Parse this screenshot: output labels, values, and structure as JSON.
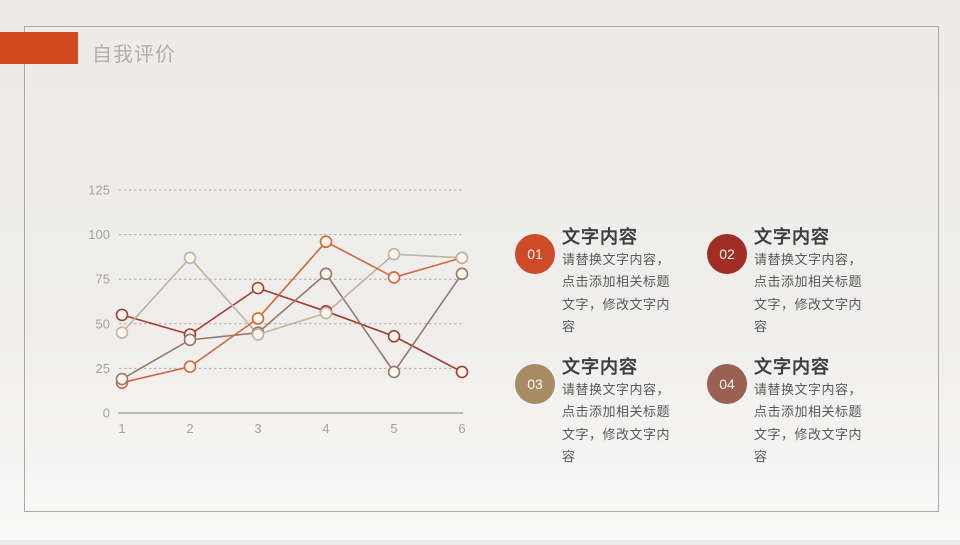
{
  "slide": {
    "title": "自我评价",
    "accent_color": "#D14A1F",
    "border_color": "#ABA9A6"
  },
  "chart_data": {
    "type": "line",
    "x": [
      "1",
      "2",
      "3",
      "4",
      "5",
      "6"
    ],
    "series": [
      {
        "name": "series-01-orange",
        "color": "#D4663A",
        "values": [
          17,
          26,
          53,
          96,
          76,
          87
        ]
      },
      {
        "name": "series-02-darkred",
        "color": "#A63B30",
        "values": [
          55,
          44,
          70,
          57,
          43,
          23
        ]
      },
      {
        "name": "series-03-tan",
        "color": "#BFB3A1",
        "values": [
          45,
          87,
          44,
          56,
          89,
          87
        ]
      },
      {
        "name": "series-04-brown",
        "color": "#97786B",
        "values": [
          19,
          41,
          45,
          78,
          23,
          78
        ]
      }
    ],
    "ylim": [
      0,
      125
    ],
    "yticks": [
      0,
      25,
      50,
      75,
      100,
      125
    ],
    "grid": "dashed-horizontal",
    "legend": "none",
    "marker_fill": "#FBF5EC",
    "axis_label_color": "#A5A3A0"
  },
  "items": [
    {
      "number": "01",
      "badge_color": "#CF4A26",
      "title": "文字内容",
      "body": "请替换文字内容，点击添加相关标题文字，修改文字内容"
    },
    {
      "number": "02",
      "badge_color": "#A02E24",
      "title": "文字内容",
      "body": "请替换文字内容，点击添加相关标题文字，修改文字内容"
    },
    {
      "number": "03",
      "badge_color": "#A78C63",
      "title": "文字内容",
      "body": "请替换文字内容，点击添加相关标题文字，修改文字内容"
    },
    {
      "number": "04",
      "badge_color": "#9A6051",
      "title": "文字内容",
      "body": "请替换文字内容，点击添加相关标题文字，修改文字内容"
    }
  ]
}
